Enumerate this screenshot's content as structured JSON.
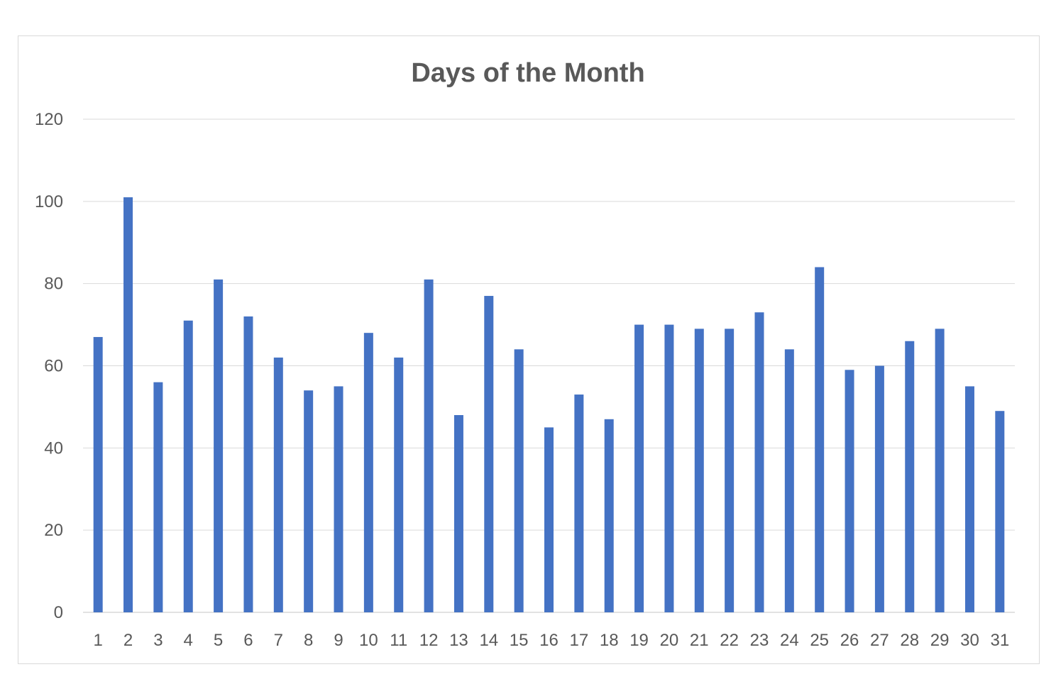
{
  "chart_data": {
    "type": "bar",
    "title": "Days of the Month",
    "xlabel": "",
    "ylabel": "",
    "categories": [
      "1",
      "2",
      "3",
      "4",
      "5",
      "6",
      "7",
      "8",
      "9",
      "10",
      "11",
      "12",
      "13",
      "14",
      "15",
      "16",
      "17",
      "18",
      "19",
      "20",
      "21",
      "22",
      "23",
      "24",
      "25",
      "26",
      "27",
      "28",
      "29",
      "30",
      "31"
    ],
    "values": [
      67,
      101,
      56,
      71,
      81,
      72,
      62,
      54,
      55,
      68,
      62,
      81,
      48,
      77,
      64,
      45,
      53,
      47,
      70,
      70,
      69,
      69,
      73,
      64,
      84,
      59,
      60,
      66,
      69,
      55,
      49
    ],
    "ylim": [
      0,
      120
    ],
    "yticks": [
      0,
      20,
      40,
      60,
      80,
      100,
      120
    ],
    "grid": true,
    "legend": "none",
    "bar_color": "#4472c4",
    "grid_color": "#d9d9d9"
  }
}
